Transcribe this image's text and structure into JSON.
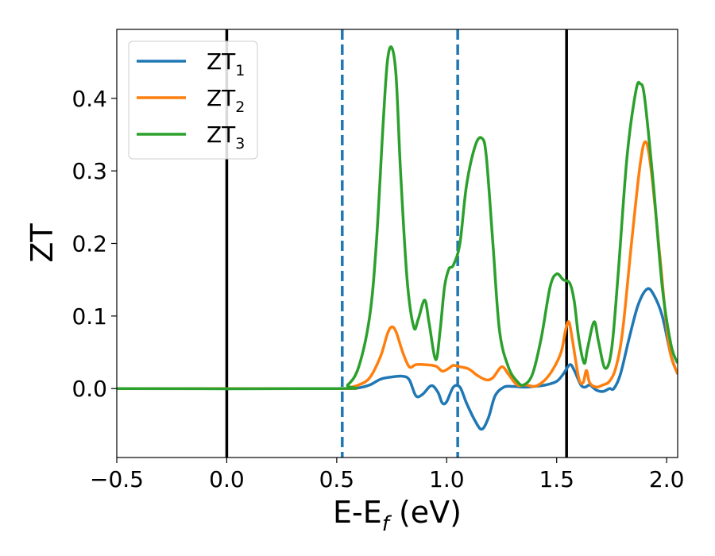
{
  "chart_data": {
    "type": "line",
    "title": "",
    "xlabel": "E-E",
    "xlabel_sub": "f",
    "xlabel_unit": " (eV)",
    "ylabel": "ZT",
    "xlim": [
      -0.5,
      2.05
    ],
    "ylim": [
      -0.095,
      0.495
    ],
    "xticks": [
      -0.5,
      0.0,
      0.5,
      1.0,
      1.5,
      2.0
    ],
    "xtick_labels": [
      "−0.5",
      "0.0",
      "0.5",
      "1.0",
      "1.5",
      "2.0"
    ],
    "yticks": [
      0.0,
      0.1,
      0.2,
      0.3,
      0.4
    ],
    "ytick_labels": [
      "0.0",
      "0.1",
      "0.2",
      "0.3",
      "0.4"
    ],
    "grid": false,
    "legend_position": "top-left",
    "vlines": [
      {
        "x": 0.0,
        "style": "solid",
        "color": "#000000"
      },
      {
        "x": 1.545,
        "style": "solid",
        "color": "#000000"
      },
      {
        "x": 0.525,
        "style": "dashed",
        "color": "#1f77b4"
      },
      {
        "x": 1.05,
        "style": "dashed",
        "color": "#1f77b4"
      }
    ],
    "series": [
      {
        "name": "ZT",
        "sub": "1",
        "color": "#1f77b4",
        "points": [
          [
            -0.5,
            0
          ],
          [
            0.5,
            0
          ],
          [
            0.55,
            0
          ],
          [
            0.6,
            0.001
          ],
          [
            0.65,
            0.005
          ],
          [
            0.7,
            0.013
          ],
          [
            0.75,
            0.016
          ],
          [
            0.8,
            0.017
          ],
          [
            0.83,
            0.012
          ],
          [
            0.86,
            -0.01
          ],
          [
            0.89,
            -0.008
          ],
          [
            0.93,
            0.004
          ],
          [
            0.96,
            -0.005
          ],
          [
            0.98,
            -0.02
          ],
          [
            1.0,
            -0.018
          ],
          [
            1.03,
            0.002
          ],
          [
            1.06,
            0.002
          ],
          [
            1.09,
            -0.02
          ],
          [
            1.13,
            -0.045
          ],
          [
            1.16,
            -0.056
          ],
          [
            1.19,
            -0.04
          ],
          [
            1.22,
            -0.01
          ],
          [
            1.26,
            0.002
          ],
          [
            1.3,
            0.003
          ],
          [
            1.35,
            0.002
          ],
          [
            1.4,
            0.003
          ],
          [
            1.45,
            0.005
          ],
          [
            1.5,
            0.01
          ],
          [
            1.53,
            0.02
          ],
          [
            1.56,
            0.033
          ],
          [
            1.58,
            0.025
          ],
          [
            1.61,
            0.005
          ],
          [
            1.63,
            0.002
          ],
          [
            1.65,
            0.005
          ],
          [
            1.68,
            -0.002
          ],
          [
            1.71,
            -0.004
          ],
          [
            1.74,
            0.0
          ],
          [
            1.76,
            0.0
          ],
          [
            1.79,
            0.02
          ],
          [
            1.83,
            0.07
          ],
          [
            1.87,
            0.115
          ],
          [
            1.91,
            0.137
          ],
          [
            1.94,
            0.13
          ],
          [
            1.98,
            0.1
          ],
          [
            2.02,
            0.045
          ],
          [
            2.05,
            0.02
          ]
        ]
      },
      {
        "name": "ZT",
        "sub": "2",
        "color": "#ff7f0e",
        "points": [
          [
            -0.5,
            0
          ],
          [
            0.5,
            0
          ],
          [
            0.55,
            0.001
          ],
          [
            0.6,
            0.005
          ],
          [
            0.65,
            0.015
          ],
          [
            0.7,
            0.045
          ],
          [
            0.73,
            0.075
          ],
          [
            0.75,
            0.085
          ],
          [
            0.77,
            0.078
          ],
          [
            0.8,
            0.05
          ],
          [
            0.83,
            0.03
          ],
          [
            0.86,
            0.033
          ],
          [
            0.9,
            0.033
          ],
          [
            0.95,
            0.031
          ],
          [
            0.98,
            0.024
          ],
          [
            1.01,
            0.028
          ],
          [
            1.03,
            0.032
          ],
          [
            1.06,
            0.03
          ],
          [
            1.1,
            0.027
          ],
          [
            1.14,
            0.018
          ],
          [
            1.18,
            0.012
          ],
          [
            1.21,
            0.015
          ],
          [
            1.25,
            0.03
          ],
          [
            1.28,
            0.02
          ],
          [
            1.32,
            0.005
          ],
          [
            1.36,
            0.005
          ],
          [
            1.4,
            0.003
          ],
          [
            1.44,
            0.01
          ],
          [
            1.48,
            0.025
          ],
          [
            1.52,
            0.05
          ],
          [
            1.54,
            0.08
          ],
          [
            1.555,
            0.092
          ],
          [
            1.57,
            0.07
          ],
          [
            1.6,
            0.015
          ],
          [
            1.62,
            0.008
          ],
          [
            1.635,
            0.025
          ],
          [
            1.65,
            0.008
          ],
          [
            1.68,
            0.002
          ],
          [
            1.71,
            0.005
          ],
          [
            1.74,
            0.01
          ],
          [
            1.77,
            0.03
          ],
          [
            1.8,
            0.08
          ],
          [
            1.84,
            0.2
          ],
          [
            1.88,
            0.31
          ],
          [
            1.905,
            0.34
          ],
          [
            1.93,
            0.3
          ],
          [
            1.97,
            0.18
          ],
          [
            2.01,
            0.06
          ],
          [
            2.05,
            0.02
          ]
        ]
      },
      {
        "name": "ZT",
        "sub": "3",
        "color": "#2ca02c",
        "points": [
          [
            -0.5,
            0
          ],
          [
            0.5,
            0
          ],
          [
            0.55,
            0.005
          ],
          [
            0.6,
            0.03
          ],
          [
            0.65,
            0.1
          ],
          [
            0.68,
            0.2
          ],
          [
            0.71,
            0.36
          ],
          [
            0.73,
            0.45
          ],
          [
            0.75,
            0.47
          ],
          [
            0.77,
            0.43
          ],
          [
            0.79,
            0.3
          ],
          [
            0.82,
            0.15
          ],
          [
            0.85,
            0.085
          ],
          [
            0.87,
            0.095
          ],
          [
            0.9,
            0.122
          ],
          [
            0.92,
            0.09
          ],
          [
            0.95,
            0.04
          ],
          [
            0.97,
            0.08
          ],
          [
            0.99,
            0.14
          ],
          [
            1.01,
            0.165
          ],
          [
            1.03,
            0.17
          ],
          [
            1.06,
            0.2
          ],
          [
            1.09,
            0.28
          ],
          [
            1.13,
            0.335
          ],
          [
            1.16,
            0.345
          ],
          [
            1.18,
            0.32
          ],
          [
            1.21,
            0.2
          ],
          [
            1.24,
            0.08
          ],
          [
            1.28,
            0.03
          ],
          [
            1.32,
            0.01
          ],
          [
            1.35,
            0.005
          ],
          [
            1.39,
            0.02
          ],
          [
            1.43,
            0.07
          ],
          [
            1.47,
            0.14
          ],
          [
            1.5,
            0.158
          ],
          [
            1.53,
            0.15
          ],
          [
            1.56,
            0.145
          ],
          [
            1.58,
            0.12
          ],
          [
            1.6,
            0.07
          ],
          [
            1.625,
            0.035
          ],
          [
            1.64,
            0.055
          ],
          [
            1.67,
            0.092
          ],
          [
            1.69,
            0.065
          ],
          [
            1.72,
            0.028
          ],
          [
            1.75,
            0.055
          ],
          [
            1.78,
            0.16
          ],
          [
            1.82,
            0.32
          ],
          [
            1.86,
            0.41
          ],
          [
            1.88,
            0.42
          ],
          [
            1.9,
            0.4
          ],
          [
            1.94,
            0.28
          ],
          [
            1.98,
            0.14
          ],
          [
            2.02,
            0.06
          ],
          [
            2.05,
            0.035
          ]
        ]
      }
    ]
  }
}
